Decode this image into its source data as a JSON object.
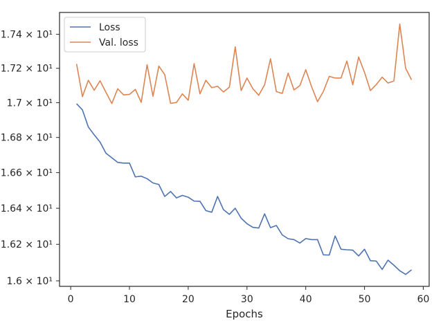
{
  "chart_data": {
    "type": "line",
    "title": "",
    "xlabel": "Epochs",
    "ylabel": "",
    "xlim": [
      -1.9,
      61.0
    ],
    "ylim": [
      15.97,
      17.53
    ],
    "y_scale": "log",
    "grid": false,
    "legend_position": "top-left",
    "x_ticks": [
      0,
      10,
      20,
      30,
      40,
      50,
      60
    ],
    "x_tick_labels": [
      "0",
      "10",
      "20",
      "30",
      "40",
      "50",
      "60"
    ],
    "y_ticks": [
      16.0,
      16.2,
      16.4,
      16.6,
      16.8,
      17.0,
      17.2,
      17.4
    ],
    "y_tick_labels": [
      "1.6 × 10¹",
      "1.62 × 10¹",
      "1.64 × 10¹",
      "1.66 × 10¹",
      "1.68 × 10¹",
      "1.7 × 10¹",
      "1.72 × 10¹",
      "1.74 × 10¹"
    ],
    "x": [
      1,
      2,
      3,
      4,
      5,
      6,
      7,
      8,
      9,
      10,
      11,
      12,
      13,
      14,
      15,
      16,
      17,
      18,
      19,
      20,
      21,
      22,
      23,
      24,
      25,
      26,
      27,
      28,
      29,
      30,
      31,
      32,
      33,
      34,
      35,
      36,
      37,
      38,
      39,
      40,
      41,
      42,
      43,
      44,
      45,
      46,
      47,
      48,
      49,
      50,
      51,
      52,
      53,
      54,
      55,
      56,
      57,
      58
    ],
    "series": [
      {
        "name": "Loss",
        "color": "#4c72b0",
        "values": [
          16.994,
          16.958,
          16.86,
          16.815,
          16.773,
          16.71,
          16.684,
          16.658,
          16.654,
          16.654,
          16.576,
          16.58,
          16.566,
          16.542,
          16.533,
          16.466,
          16.494,
          16.458,
          16.472,
          16.462,
          16.44,
          16.439,
          16.387,
          16.378,
          16.466,
          16.392,
          16.366,
          16.4,
          16.345,
          16.314,
          16.294,
          16.29,
          16.369,
          16.292,
          16.304,
          16.252,
          16.231,
          16.226,
          16.207,
          16.232,
          16.226,
          16.226,
          16.142,
          16.141,
          16.246,
          16.173,
          16.17,
          16.168,
          16.136,
          16.173,
          16.11,
          16.108,
          16.062,
          16.113,
          16.085,
          16.055,
          16.035,
          16.06
        ]
      },
      {
        "name": "Val. loss",
        "color": "#dd8452",
        "values": [
          17.226,
          17.035,
          17.13,
          17.072,
          17.127,
          17.06,
          16.995,
          17.081,
          17.045,
          17.048,
          17.077,
          17.002,
          17.221,
          17.037,
          17.213,
          17.163,
          16.996,
          17.001,
          17.051,
          17.014,
          17.227,
          17.051,
          17.13,
          17.087,
          17.095,
          17.062,
          17.09,
          17.326,
          17.07,
          17.143,
          17.081,
          17.043,
          17.104,
          17.256,
          17.064,
          17.054,
          17.172,
          17.074,
          17.099,
          17.192,
          17.092,
          17.006,
          17.065,
          17.153,
          17.143,
          17.143,
          17.243,
          17.104,
          17.266,
          17.176,
          17.07,
          17.105,
          17.148,
          17.114,
          17.126,
          17.461,
          17.2,
          17.133
        ]
      }
    ]
  }
}
